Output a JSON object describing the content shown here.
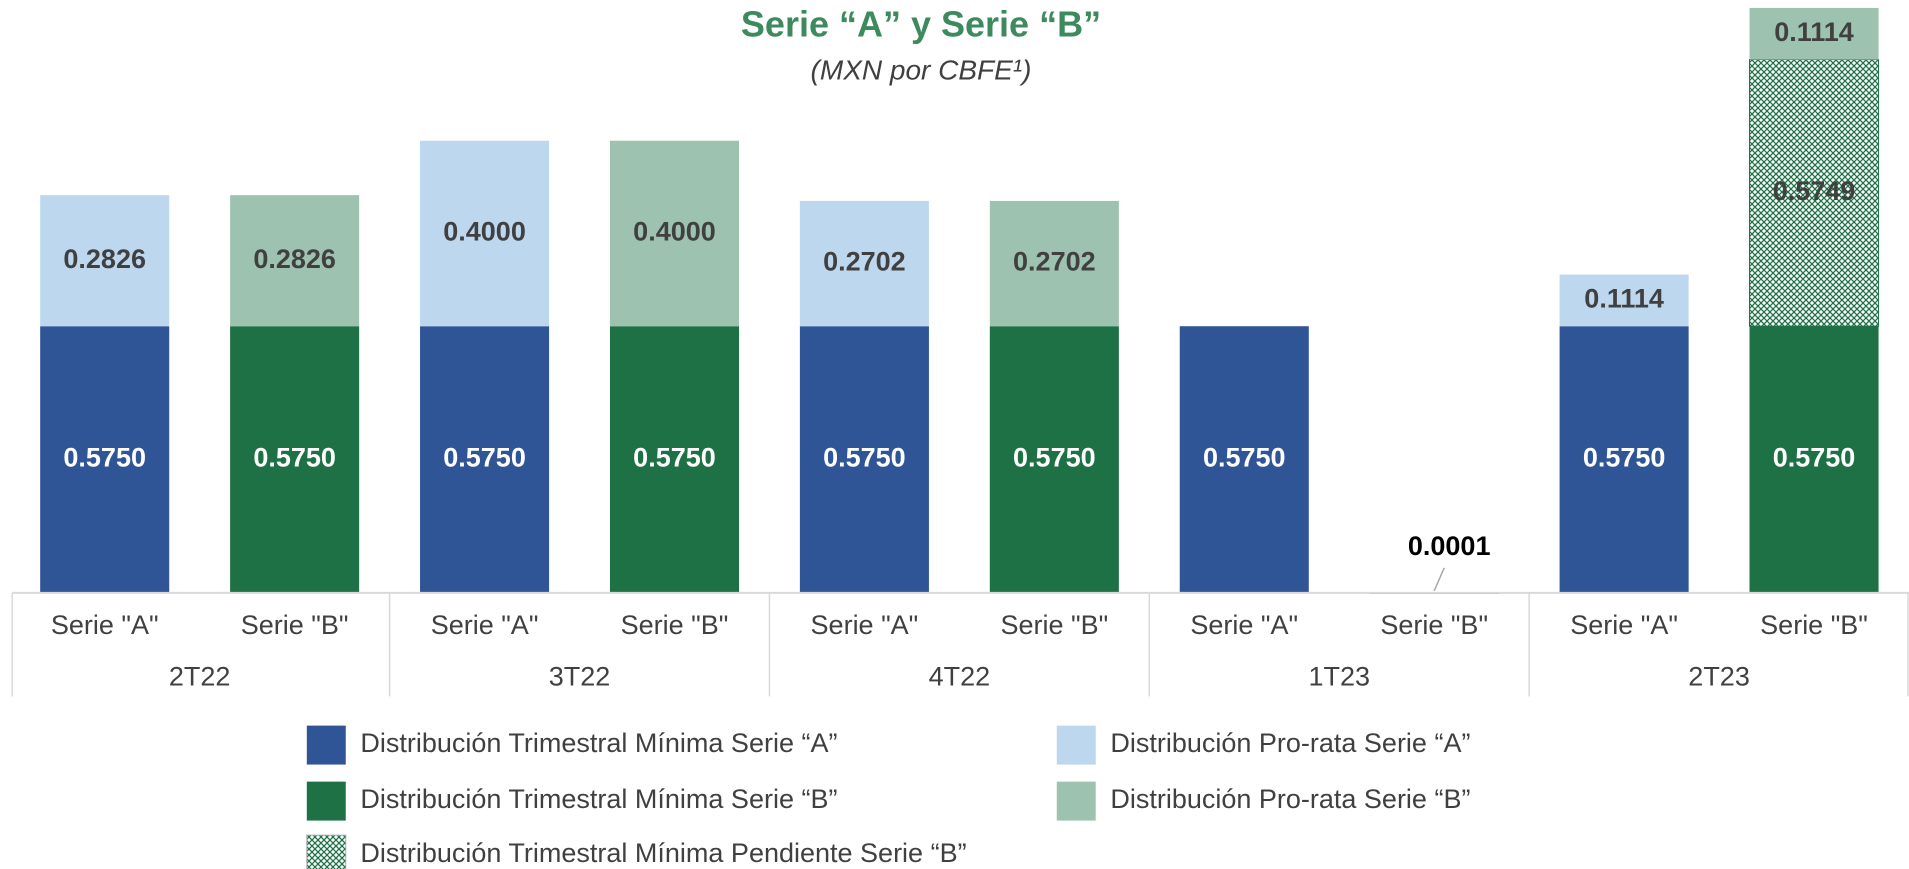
{
  "chart_data": {
    "type": "stacked-bar",
    "title": "Serie “A” y Serie “B”",
    "subtitle": "(MXN por CBFE¹)",
    "categories": [
      "Serie \"A\"",
      "Serie \"B\"",
      "Serie \"A\"",
      "Serie \"B\"",
      "Serie \"A\"",
      "Serie \"B\"",
      "Serie \"A\"",
      "Serie \"B\"",
      "Serie \"A\"",
      "Serie \"B\""
    ],
    "groups": [
      "2T22",
      "3T22",
      "4T22",
      "1T23",
      "2T23"
    ],
    "ylim": [
      0,
      1.26
    ],
    "series": [
      {
        "name": "Distribución Trimestral Mínima Serie “A”",
        "color": "#2f5597",
        "label_color": "#ffffff",
        "values": [
          0.575,
          null,
          0.575,
          null,
          0.575,
          null,
          0.575,
          0.0001,
          0.575,
          null
        ],
        "value_labels": [
          "0.5750",
          null,
          "0.5750",
          null,
          "0.5750",
          null,
          "0.5750",
          "0.0001",
          "0.5750",
          null
        ]
      },
      {
        "name": "Distribución Trimestral Mínima Serie “B”",
        "color": "#1e7145",
        "label_color": "#ffffff",
        "values": [
          null,
          0.575,
          null,
          0.575,
          null,
          0.575,
          null,
          null,
          null,
          0.575
        ],
        "value_labels": [
          null,
          "0.5750",
          null,
          "0.5750",
          null,
          "0.5750",
          null,
          null,
          null,
          "0.5750"
        ]
      },
      {
        "name": "Distribución Trimestral Mínima Pendiente Serie “B”",
        "color": "#1e7145",
        "pattern": "crosshatch",
        "label_color": "#404040",
        "values": [
          null,
          null,
          null,
          null,
          null,
          null,
          null,
          null,
          null,
          0.5749
        ],
        "value_labels": [
          null,
          null,
          null,
          null,
          null,
          null,
          null,
          null,
          null,
          "0.5749"
        ]
      },
      {
        "name": "Distribución Pro-rata Serie “A”",
        "color": "#bdd7ee",
        "label_color": "#404040",
        "values": [
          0.2826,
          null,
          0.4,
          null,
          0.2702,
          null,
          null,
          null,
          0.1114,
          null
        ],
        "value_labels": [
          "0.2826",
          null,
          "0.4000",
          null,
          "0.2702",
          null,
          null,
          null,
          "0.1114",
          null
        ]
      },
      {
        "name": "Distribución Pro-rata Serie “B”",
        "color": "#9dc3b0",
        "label_color": "#404040",
        "values": [
          null,
          0.2826,
          null,
          0.4,
          null,
          0.2702,
          null,
          null,
          null,
          0.1114
        ],
        "value_labels": [
          null,
          "0.2826",
          null,
          "0.4000",
          null,
          "0.2702",
          null,
          null,
          null,
          "0.1114"
        ]
      }
    ]
  }
}
